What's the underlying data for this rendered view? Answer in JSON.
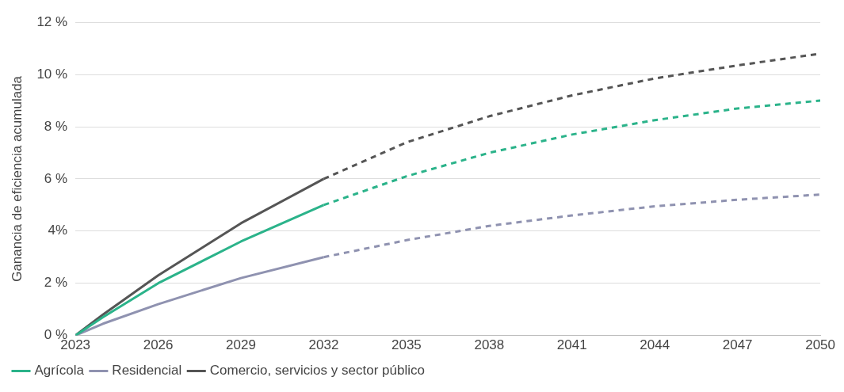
{
  "chart_data": {
    "type": "line",
    "ylabel": "Ganancia de eficiencia acumulada",
    "xlim": [
      2023,
      2050
    ],
    "xticks": [
      2023,
      2026,
      2029,
      2032,
      2035,
      2038,
      2041,
      2044,
      2047,
      2050
    ],
    "ylim": [
      0,
      12
    ],
    "yticks": [
      {
        "value": 0,
        "label": "0 %"
      },
      {
        "value": 2,
        "label": "2 %"
      },
      {
        "value": 4,
        "label": "4%"
      },
      {
        "value": 6,
        "label": "6 %"
      },
      {
        "value": 8,
        "label": "8 %"
      },
      {
        "value": 10,
        "label": "10 %"
      },
      {
        "value": 12,
        "label": "12 %"
      }
    ],
    "grid": "y",
    "legend": "bottom left",
    "marker": "none",
    "series": [
      {
        "name": "Agrícola",
        "color": "#2bb38a",
        "line_style": "solid",
        "x": [
          2023,
          2024,
          2026,
          2029,
          2032
        ],
        "values": [
          0,
          0.7,
          2.0,
          3.6,
          5.0
        ]
      },
      {
        "name": "Residencial",
        "color": "#8f92b0",
        "line_style": "solid",
        "x": [
          2023,
          2024,
          2026,
          2029,
          2032
        ],
        "values": [
          0,
          0.45,
          1.2,
          2.2,
          3.0
        ]
      },
      {
        "name": "Comercio, servicios y sector público",
        "color": "#555555",
        "line_style": "solid",
        "x": [
          2023,
          2024,
          2026,
          2029,
          2032
        ],
        "values": [
          0,
          0.8,
          2.3,
          4.3,
          6.0
        ]
      },
      {
        "color": "#2bb38a",
        "line_style": "dashed",
        "x": [
          2032,
          2035,
          2038,
          2041,
          2044,
          2047,
          2050
        ],
        "values": [
          5.0,
          6.1,
          7.0,
          7.7,
          8.25,
          8.7,
          9.0
        ]
      },
      {
        "color": "#8f92b0",
        "line_style": "dashed",
        "x": [
          2032,
          2035,
          2038,
          2041,
          2044,
          2047,
          2050
        ],
        "values": [
          3.0,
          3.65,
          4.2,
          4.6,
          4.95,
          5.2,
          5.4
        ]
      },
      {
        "color": "#555555",
        "line_style": "dashed",
        "x": [
          2032,
          2035,
          2038,
          2041,
          2044,
          2047,
          2050
        ],
        "values": [
          6.0,
          7.4,
          8.4,
          9.2,
          9.85,
          10.35,
          10.8
        ]
      }
    ]
  }
}
